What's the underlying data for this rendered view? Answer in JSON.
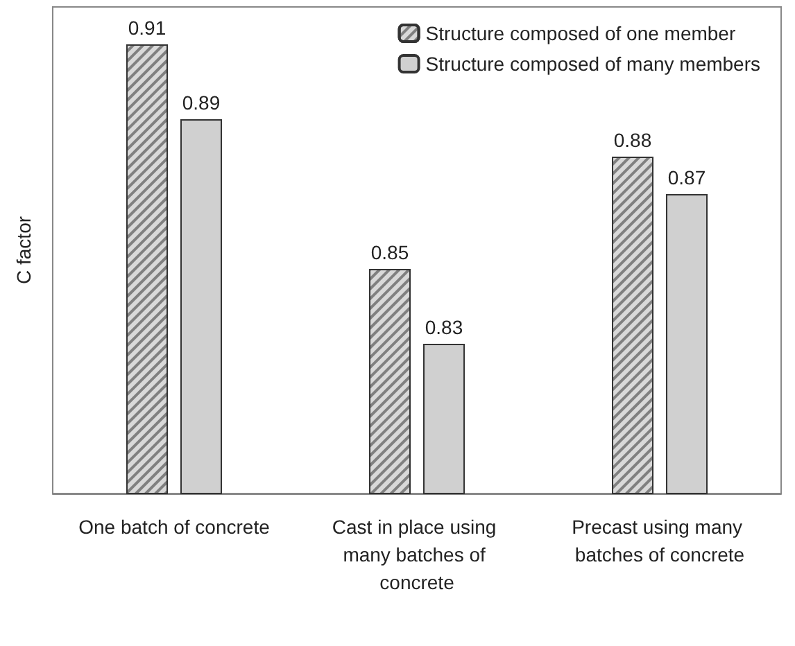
{
  "chart_data": {
    "type": "bar",
    "ylabel": "C factor",
    "categories": [
      "One batch of concrete",
      "Cast in place using many batches of concrete",
      "Precast using many batches of concrete"
    ],
    "series": [
      {
        "name": "Structure composed of one member",
        "color": "#d9d9d9",
        "values": [
          0.91,
          0.85,
          0.88
        ]
      },
      {
        "name": "Structure composed of many members",
        "color": "#d0d0d0",
        "values": [
          0.89,
          0.83,
          0.87
        ]
      }
    ],
    "ylim": [
      0.79,
      0.92
    ],
    "data_labels": true,
    "legend": "top right",
    "grid": false,
    "tick_labels": "x"
  }
}
